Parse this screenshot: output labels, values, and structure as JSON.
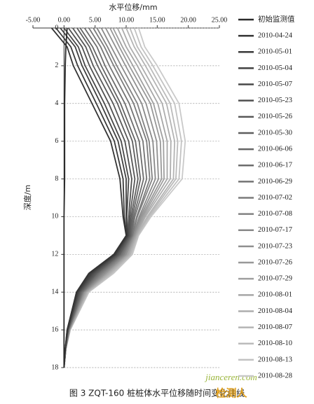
{
  "chart_data": {
    "type": "line",
    "x_label": "水平位移/mm",
    "y_label": "深度/m",
    "caption": "图 3  ZQT-160 桩桩体水平位移随时间变化曲线",
    "watermark": [
      "jianceren.com",
      "检测人"
    ],
    "xlim": [
      -5,
      25
    ],
    "xticks": [
      {
        "value": -5,
        "label": "-5.00"
      },
      {
        "value": 0,
        "label": "0.00"
      },
      {
        "value": 5,
        "label": "5.00"
      },
      {
        "value": 10,
        "label": "10.00"
      },
      {
        "value": 15,
        "label": "15.00"
      },
      {
        "value": 20,
        "label": "20.00"
      },
      {
        "value": 25,
        "label": "25.00"
      }
    ],
    "ylim": [
      0,
      18
    ],
    "yticks": [
      0,
      2,
      4,
      6,
      8,
      10,
      12,
      14,
      16,
      18
    ],
    "y_inverted": true,
    "grid": true,
    "legend": "right",
    "y": [
      0,
      1,
      2,
      4,
      6,
      8,
      10,
      11,
      12,
      13,
      14,
      16,
      17,
      18
    ],
    "series": [
      {
        "name": "初始监测值",
        "color": "#2a2a2a",
        "values": [
          0.5,
          0.3,
          0.2,
          0.1,
          0.1,
          0.1,
          0,
          0,
          0,
          0,
          0,
          0,
          0,
          0
        ]
      },
      {
        "name": "2010-04-24",
        "color": "#333333",
        "values": [
          -2,
          0.5,
          1.5,
          4.5,
          7.5,
          9,
          9.5,
          10,
          8,
          4,
          2,
          0.5,
          0.2,
          0
        ]
      },
      {
        "name": "2010-05-01",
        "color": "#3a3a3a",
        "values": [
          -1.3,
          1.1,
          2.2,
          5.2,
          8.1,
          9.5,
          9.7,
          10.1,
          8.2,
          4.2,
          2.1,
          0.5,
          0.2,
          0
        ]
      },
      {
        "name": "2010-05-04",
        "color": "#414141",
        "values": [
          -0.6,
          1.8,
          2.9,
          5.9,
          8.7,
          10,
          10,
          10.2,
          8.3,
          4.4,
          2.2,
          0.6,
          0.2,
          0
        ]
      },
      {
        "name": "2010-05-07",
        "color": "#484848",
        "values": [
          0,
          2.3,
          3.4,
          6.5,
          9.2,
          10.4,
          10.1,
          10.3,
          8.4,
          4.6,
          2.3,
          0.6,
          0.2,
          0
        ]
      },
      {
        "name": "2010-05-23",
        "color": "#505050",
        "values": [
          0.7,
          2.9,
          4.1,
          7.2,
          9.8,
          10.9,
          10.4,
          10.4,
          8.6,
          4.8,
          2.4,
          0.6,
          0.2,
          0
        ]
      },
      {
        "name": "2010-05-26",
        "color": "#575757",
        "values": [
          1.4,
          3.5,
          4.7,
          7.9,
          10.4,
          11.4,
          10.6,
          10.5,
          8.7,
          5,
          2.5,
          0.6,
          0.2,
          0
        ]
      },
      {
        "name": "2010-05-30",
        "color": "#5e5e5e",
        "values": [
          2.1,
          4.1,
          5.4,
          8.6,
          11,
          11.9,
          10.8,
          10.6,
          8.9,
          5.2,
          2.6,
          0.6,
          0.2,
          0
        ]
      },
      {
        "name": "2010-06-06",
        "color": "#656565",
        "values": [
          2.6,
          4.6,
          6,
          9.1,
          11.5,
          12.3,
          11,
          10.7,
          9,
          5.3,
          2.7,
          0.7,
          0.2,
          0
        ]
      },
      {
        "name": "2010-06-17",
        "color": "#6c6c6c",
        "values": [
          3.3,
          5.3,
          6.6,
          9.8,
          12.1,
          12.8,
          11.2,
          10.8,
          9.1,
          5.5,
          2.8,
          0.7,
          0.2,
          0
        ]
      },
      {
        "name": "2010-06-29",
        "color": "#747474",
        "values": [
          4,
          5.9,
          7.3,
          10.5,
          12.7,
          13.3,
          11.4,
          10.9,
          9.3,
          5.7,
          2.9,
          0.7,
          0.2,
          0
        ]
      },
      {
        "name": "2010-07-02",
        "color": "#7b7b7b",
        "values": [
          4.7,
          6.5,
          8,
          11.2,
          13.3,
          13.8,
          11.7,
          11,
          9.4,
          5.9,
          3,
          0.7,
          0.2,
          0
        ]
      },
      {
        "name": "2010-07-08",
        "color": "#828282",
        "values": [
          5.3,
          7,
          8.5,
          11.8,
          13.7,
          14.2,
          11.8,
          11,
          9.6,
          6.1,
          3,
          0.8,
          0.3,
          0
        ]
      },
      {
        "name": "2010-07-17",
        "color": "#898989",
        "values": [
          6,
          7.6,
          9.2,
          12.5,
          14.3,
          14.7,
          12.1,
          11.1,
          9.7,
          6.3,
          3.1,
          0.8,
          0.3,
          0
        ]
      },
      {
        "name": "2010-07-23",
        "color": "#909090",
        "values": [
          6.7,
          8.3,
          9.9,
          13.2,
          14.9,
          15.2,
          12.3,
          11.2,
          9.9,
          6.5,
          3.2,
          0.8,
          0.3,
          0
        ]
      },
      {
        "name": "2010-07-26",
        "color": "#989898",
        "values": [
          7.4,
          8.9,
          10.5,
          13.9,
          15.5,
          15.7,
          12.5,
          11.3,
          10,
          6.7,
          3.3,
          0.8,
          0.3,
          0
        ]
      },
      {
        "name": "2010-07-29",
        "color": "#9f9f9f",
        "values": [
          7.9,
          9.4,
          11.1,
          14.4,
          16,
          16.1,
          12.7,
          11.4,
          10.1,
          6.8,
          3.4,
          0.9,
          0.3,
          0
        ]
      },
      {
        "name": "2010-08-01",
        "color": "#a6a6a6",
        "values": [
          8.6,
          10,
          11.8,
          15.1,
          16.6,
          16.6,
          12.9,
          11.5,
          10.3,
          7,
          3.5,
          0.9,
          0.3,
          0
        ]
      },
      {
        "name": "2010-08-04",
        "color": "#adadad",
        "values": [
          9.3,
          10.6,
          12.4,
          15.8,
          17.2,
          17.1,
          13.1,
          11.6,
          10.4,
          7.2,
          3.6,
          0.9,
          0.3,
          0
        ]
      },
      {
        "name": "2010-08-07",
        "color": "#b4b4b4",
        "values": [
          10,
          11.3,
          13.1,
          16.5,
          17.8,
          17.6,
          13.4,
          11.7,
          10.6,
          7.4,
          3.7,
          0.9,
          0.3,
          0
        ]
      },
      {
        "name": "2010-08-10",
        "color": "#bbbbbb",
        "values": [
          10.6,
          11.8,
          13.7,
          17.1,
          18.3,
          18,
          13.6,
          11.8,
          10.7,
          7.6,
          3.8,
          1,
          0.3,
          0
        ]
      },
      {
        "name": "2010-08-13",
        "color": "#c2c2c2",
        "values": [
          11.3,
          12.4,
          14.3,
          17.8,
          18.9,
          18.5,
          13.8,
          11.9,
          10.9,
          7.8,
          3.9,
          1,
          0.3,
          0
        ]
      },
      {
        "name": "2010-08-28",
        "color": "#c9c9c9",
        "values": [
          12,
          13,
          15,
          18.5,
          19.5,
          19,
          14,
          12,
          11,
          8,
          4,
          1,
          0.3,
          0
        ]
      }
    ]
  }
}
